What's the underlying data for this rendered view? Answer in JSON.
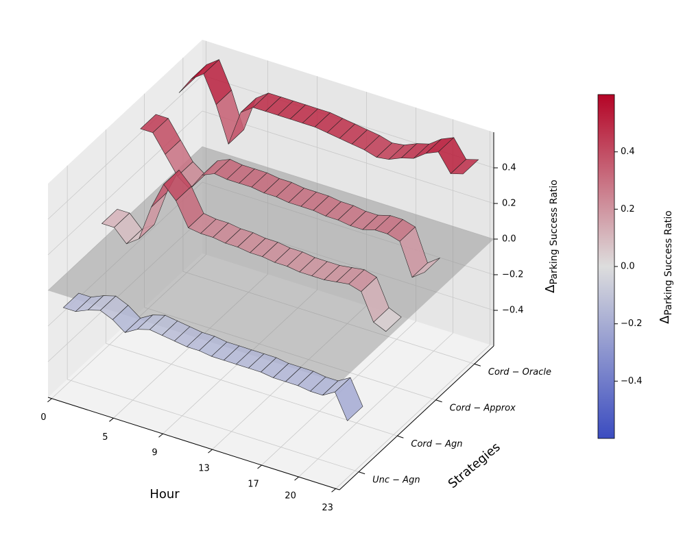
{
  "chart_data": {
    "type": "surface3d",
    "xlabel": "Hour",
    "ylabel": "Strategies",
    "zlabel": {
      "symbol": "Δ",
      "subscript": "Parking Success Ratio"
    },
    "x": [
      0,
      1,
      2,
      3,
      4,
      5,
      6,
      7,
      8,
      9,
      10,
      11,
      12,
      13,
      14,
      15,
      16,
      17,
      18,
      19,
      20,
      21,
      22,
      23
    ],
    "series": [
      {
        "name": "Unc − Agn",
        "values": [
          -0.15,
          -0.15,
          -0.12,
          -0.1,
          -0.13,
          -0.18,
          -0.14,
          -0.12,
          -0.13,
          -0.14,
          -0.15,
          -0.15,
          -0.16,
          -0.16,
          -0.16,
          -0.16,
          -0.16,
          -0.17,
          -0.17,
          -0.17,
          -0.18,
          -0.18,
          -0.14,
          -0.28
        ]
      },
      {
        "name": "Cord − Agn",
        "values": [
          0.12,
          0.12,
          0.05,
          0.1,
          0.3,
          0.45,
          0.38,
          0.25,
          0.24,
          0.24,
          0.23,
          0.23,
          0.22,
          0.22,
          0.21,
          0.21,
          0.2,
          0.2,
          0.2,
          0.21,
          0.22,
          0.2,
          0.05,
          0.02
        ]
      },
      {
        "name": "Cord − Approx",
        "values": [
          0.45,
          0.45,
          0.35,
          0.25,
          0.2,
          0.3,
          0.33,
          0.32,
          0.32,
          0.32,
          0.31,
          0.31,
          0.3,
          0.3,
          0.3,
          0.29,
          0.29,
          0.28,
          0.28,
          0.3,
          0.3,
          0.28,
          0.1,
          0.15
        ]
      },
      {
        "name": "Cord − Oracle",
        "values": [
          0.45,
          0.55,
          0.6,
          0.45,
          0.25,
          0.45,
          0.5,
          0.5,
          0.5,
          0.5,
          0.5,
          0.5,
          0.49,
          0.48,
          0.47,
          0.46,
          0.44,
          0.45,
          0.48,
          0.5,
          0.55,
          0.58,
          0.48,
          0.5
        ]
      }
    ],
    "xlim": [
      -0.3,
      23.3
    ],
    "xticks": [
      0,
      5,
      9,
      13,
      17,
      20,
      23
    ],
    "ylim": [
      -0.5,
      3.5
    ],
    "zlim": [
      -0.6,
      0.6
    ],
    "zticks": [
      {
        "value": -0.4,
        "label": "−0.4"
      },
      {
        "value": -0.2,
        "label": "−0.2"
      },
      {
        "value": 0,
        "label": "0.0"
      },
      0.2,
      0.4
    ],
    "zero_plane": 0,
    "grid": true,
    "colormap": [
      "#3b4cc0",
      "#dddddd",
      "#b40426"
    ],
    "colorbar": {
      "clim": [
        -0.6,
        0.6
      ],
      "ticks": [
        {
          "value": -0.4,
          "label": "−0.4"
        },
        {
          "value": -0.2,
          "label": "−0.2"
        },
        {
          "value": 0,
          "label": "0.0"
        },
        0.2,
        0.4
      ],
      "label": {
        "symbol": "Δ",
        "subscript": "Parking Success Ratio"
      }
    }
  }
}
